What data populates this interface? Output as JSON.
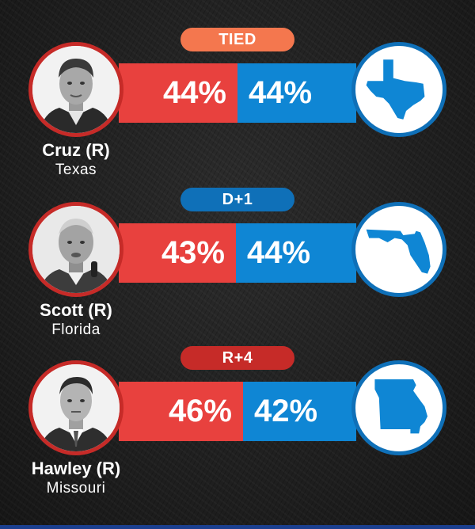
{
  "colors": {
    "republican": "#e8413e",
    "democrat": "#0f86d4",
    "republican_ring": "#c62b28",
    "democrat_ring": "#0f70b8",
    "tied_badge": "#f4774e",
    "dem_lead_badge": "#0f70b8",
    "rep_lead_badge": "#c62b28"
  },
  "races": [
    {
      "badge": "TIED",
      "badge_color": "#f4774e",
      "candidate_name": "Cruz (R)",
      "candidate_state": "Texas",
      "rep_pct": "44%",
      "dem_pct": "44%",
      "rep_value": 44,
      "dem_value": 44,
      "state_icon": "texas-map-icon"
    },
    {
      "badge": "D+1",
      "badge_color": "#0f70b8",
      "candidate_name": "Scott (R)",
      "candidate_state": "Florida",
      "rep_pct": "43%",
      "dem_pct": "44%",
      "rep_value": 43,
      "dem_value": 44,
      "state_icon": "florida-map-icon"
    },
    {
      "badge": "R+4",
      "badge_color": "#c62b28",
      "candidate_name": "Hawley (R)",
      "candidate_state": "Missouri",
      "rep_pct": "46%",
      "dem_pct": "42%",
      "rep_value": 46,
      "dem_value": 42,
      "state_icon": "missouri-map-icon"
    }
  ]
}
